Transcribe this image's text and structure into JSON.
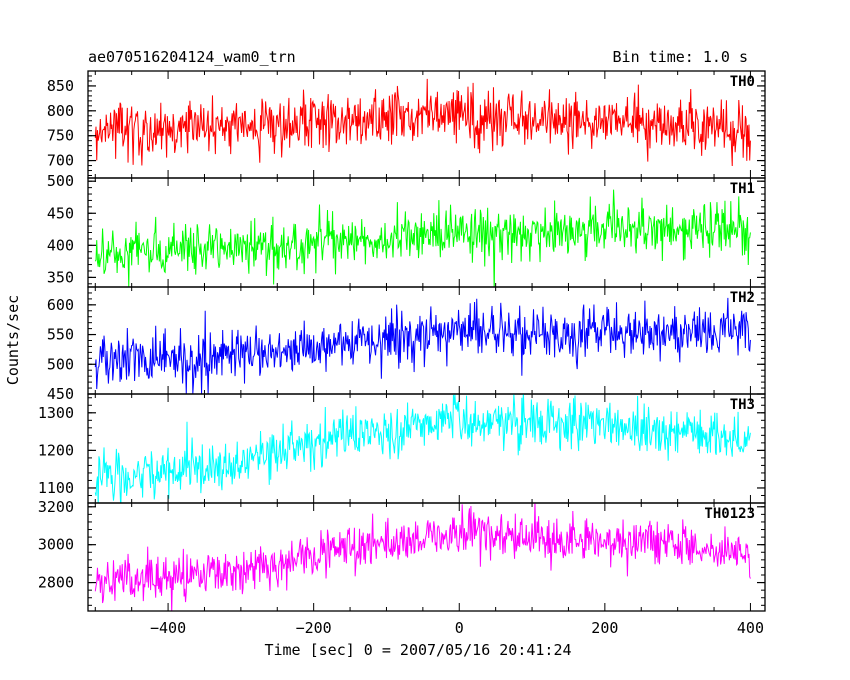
{
  "header": {
    "obs_id": "ae070516204124_wam0_trn",
    "bin_time": "Bin time: 1.0 s"
  },
  "chart_data": {
    "type": "line",
    "title": "ae070516204124_wam0_trn",
    "xlabel": "Time [sec] 0 = 2007/05/16 20:41:24",
    "ylabel": "Counts/sec",
    "xlim": [
      -510,
      420
    ],
    "x_ticks": [
      -400,
      -200,
      0,
      200,
      400
    ],
    "x_tick_labels": [
      "−400",
      "−200",
      "0",
      "200",
      "400"
    ],
    "x_start": -500,
    "x_end": 400,
    "bin_seconds": 1.0,
    "grid": false,
    "panels": [
      {
        "name": "TH0",
        "color": "#ff0000",
        "ylim": [
          665,
          880
        ],
        "y_ticks": [
          700,
          750,
          800,
          850
        ],
        "trend_x": [
          -500,
          -300,
          -100,
          0,
          100,
          300,
          400
        ],
        "trend_y": [
          762,
          768,
          782,
          790,
          788,
          770,
          748
        ],
        "noise_sigma": 28
      },
      {
        "name": "TH1",
        "color": "#00ff00",
        "ylim": [
          335,
          505
        ],
        "y_ticks": [
          350,
          400,
          450,
          500
        ],
        "trend_x": [
          -500,
          -300,
          -100,
          0,
          100,
          300,
          400
        ],
        "trend_y": [
          385,
          398,
          410,
          418,
          420,
          428,
          425
        ],
        "noise_sigma": 20
      },
      {
        "name": "TH2",
        "color": "#0000ff",
        "ylim": [
          450,
          630
        ],
        "y_ticks": [
          450,
          500,
          550,
          600
        ],
        "trend_x": [
          -500,
          -300,
          -200,
          0,
          100,
          300,
          400
        ],
        "trend_y": [
          505,
          515,
          530,
          555,
          550,
          555,
          552
        ],
        "noise_sigma": 22
      },
      {
        "name": "TH3",
        "color": "#00ffff",
        "ylim": [
          1060,
          1350
        ],
        "y_ticks": [
          1100,
          1200,
          1300
        ],
        "trend_x": [
          -500,
          -300,
          -200,
          0,
          100,
          300,
          400
        ],
        "trend_y": [
          1125,
          1165,
          1225,
          1280,
          1275,
          1250,
          1220
        ],
        "noise_sigma": 32
      },
      {
        "name": "TH0123",
        "color": "#ff00ff",
        "ylim": [
          2650,
          3220
        ],
        "y_ticks": [
          2800,
          3000,
          3200
        ],
        "trend_x": [
          -500,
          -300,
          -100,
          0,
          100,
          300,
          400
        ],
        "trend_y": [
          2800,
          2860,
          3000,
          3060,
          3040,
          3000,
          2950
        ],
        "noise_sigma": 60
      }
    ]
  }
}
